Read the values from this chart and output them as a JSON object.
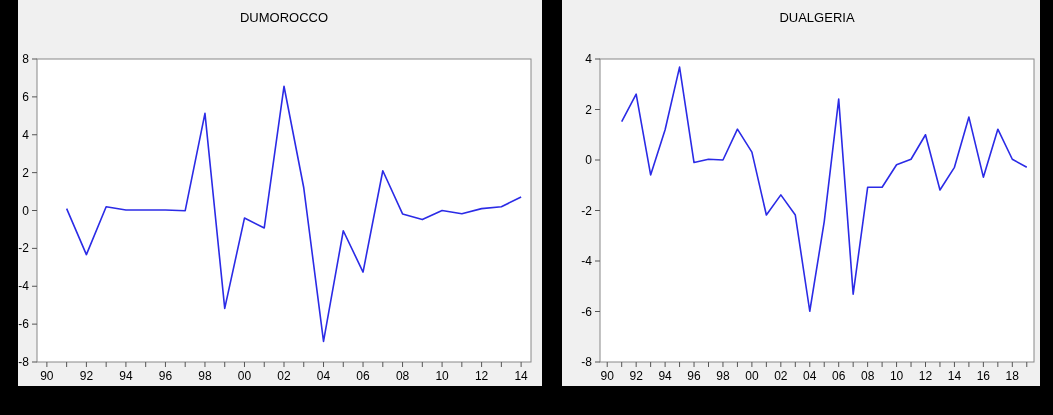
{
  "chart_data": [
    {
      "type": "line",
      "title": "DUMOROCCO",
      "x": [
        1991,
        1992,
        1993,
        1994,
        1995,
        1996,
        1997,
        1998,
        1999,
        2000,
        2001,
        2002,
        2003,
        2004,
        2005,
        2006,
        2007,
        2008,
        2009,
        2010,
        2011,
        2012,
        2013,
        2014
      ],
      "series": [
        {
          "color": "#2b2be6",
          "values": [
            0.1,
            -2.33,
            0.2,
            0.03,
            0.03,
            0.03,
            -0.01,
            5.13,
            -5.17,
            -0.4,
            -0.92,
            6.56,
            1.2,
            -6.91,
            -1.07,
            -3.25,
            2.1,
            -0.18,
            -0.48,
            0,
            -0.17,
            0.1,
            0.2,
            0.71
          ]
        }
      ],
      "xlim": [
        1989.5,
        2014.5
      ],
      "xticks": [
        {
          "value": 1990,
          "label": "90"
        },
        {
          "value": 1991,
          "label": null
        },
        {
          "value": 1992,
          "label": "92"
        },
        {
          "value": 1993,
          "label": null
        },
        {
          "value": 1994,
          "label": "94"
        },
        {
          "value": 1995,
          "label": null
        },
        {
          "value": 1996,
          "label": "96"
        },
        {
          "value": 1997,
          "label": null
        },
        {
          "value": 1998,
          "label": "98"
        },
        {
          "value": 1999,
          "label": null
        },
        {
          "value": 2000,
          "label": "00"
        },
        {
          "value": 2001,
          "label": null
        },
        {
          "value": 2002,
          "label": "02"
        },
        {
          "value": 2003,
          "label": null
        },
        {
          "value": 2004,
          "label": "04"
        },
        {
          "value": 2005,
          "label": null
        },
        {
          "value": 2006,
          "label": "06"
        },
        {
          "value": 2007,
          "label": null
        },
        {
          "value": 2008,
          "label": "08"
        },
        {
          "value": 2009,
          "label": null
        },
        {
          "value": 2010,
          "label": "10"
        },
        {
          "value": 2011,
          "label": null
        },
        {
          "value": 2012,
          "label": "12"
        },
        {
          "value": 2013,
          "label": null
        },
        {
          "value": 2014,
          "label": "14"
        }
      ],
      "ylim": [
        -8,
        8
      ],
      "yticks": [
        -8,
        -6,
        -4,
        -2,
        0,
        2,
        4,
        6,
        8
      ],
      "line_style": "solid"
    },
    {
      "type": "line",
      "title": "DUALGERIA",
      "x": [
        1991,
        1992,
        1993,
        1994,
        1995,
        1996,
        1997,
        1998,
        1999,
        2000,
        2001,
        2002,
        2003,
        2004,
        2005,
        2006,
        2007,
        2008,
        2009,
        2010,
        2011,
        2012,
        2013,
        2014,
        2015,
        2016,
        2017,
        2018,
        2019
      ],
      "series": [
        {
          "color": "#2b2be6",
          "values": [
            1.52,
            2.61,
            -0.59,
            1.2,
            3.68,
            -0.1,
            0.03,
            0,
            1.22,
            0.31,
            -2.18,
            -1.38,
            -2.18,
            -5.99,
            -2.44,
            2.41,
            -5.31,
            -1.08,
            -1.08,
            -0.19,
            0.03,
            1,
            -1.19,
            -0.29,
            1.7,
            -0.68,
            1.22,
            0.03,
            -0.29
          ]
        }
      ],
      "xlim": [
        1989.5,
        2019.5
      ],
      "xticks": [
        {
          "value": 1990,
          "label": "90"
        },
        {
          "value": 1991,
          "label": null
        },
        {
          "value": 1992,
          "label": "92"
        },
        {
          "value": 1993,
          "label": null
        },
        {
          "value": 1994,
          "label": "94"
        },
        {
          "value": 1995,
          "label": null
        },
        {
          "value": 1996,
          "label": "96"
        },
        {
          "value": 1997,
          "label": null
        },
        {
          "value": 1998,
          "label": "98"
        },
        {
          "value": 1999,
          "label": null
        },
        {
          "value": 2000,
          "label": "00"
        },
        {
          "value": 2001,
          "label": null
        },
        {
          "value": 2002,
          "label": "02"
        },
        {
          "value": 2003,
          "label": null
        },
        {
          "value": 2004,
          "label": "04"
        },
        {
          "value": 2005,
          "label": null
        },
        {
          "value": 2006,
          "label": "06"
        },
        {
          "value": 2007,
          "label": null
        },
        {
          "value": 2008,
          "label": "08"
        },
        {
          "value": 2009,
          "label": null
        },
        {
          "value": 2010,
          "label": "10"
        },
        {
          "value": 2011,
          "label": null
        },
        {
          "value": 2012,
          "label": "12"
        },
        {
          "value": 2013,
          "label": null
        },
        {
          "value": 2014,
          "label": "14"
        },
        {
          "value": 2015,
          "label": null
        },
        {
          "value": 2016,
          "label": "16"
        },
        {
          "value": 2017,
          "label": null
        },
        {
          "value": 2018,
          "label": "18"
        },
        {
          "value": 2019,
          "label": null
        }
      ],
      "ylim": [
        -8,
        4
      ],
      "yticks": [
        -8,
        -6,
        -4,
        -2,
        0,
        2,
        4
      ],
      "line_style": "solid"
    }
  ]
}
